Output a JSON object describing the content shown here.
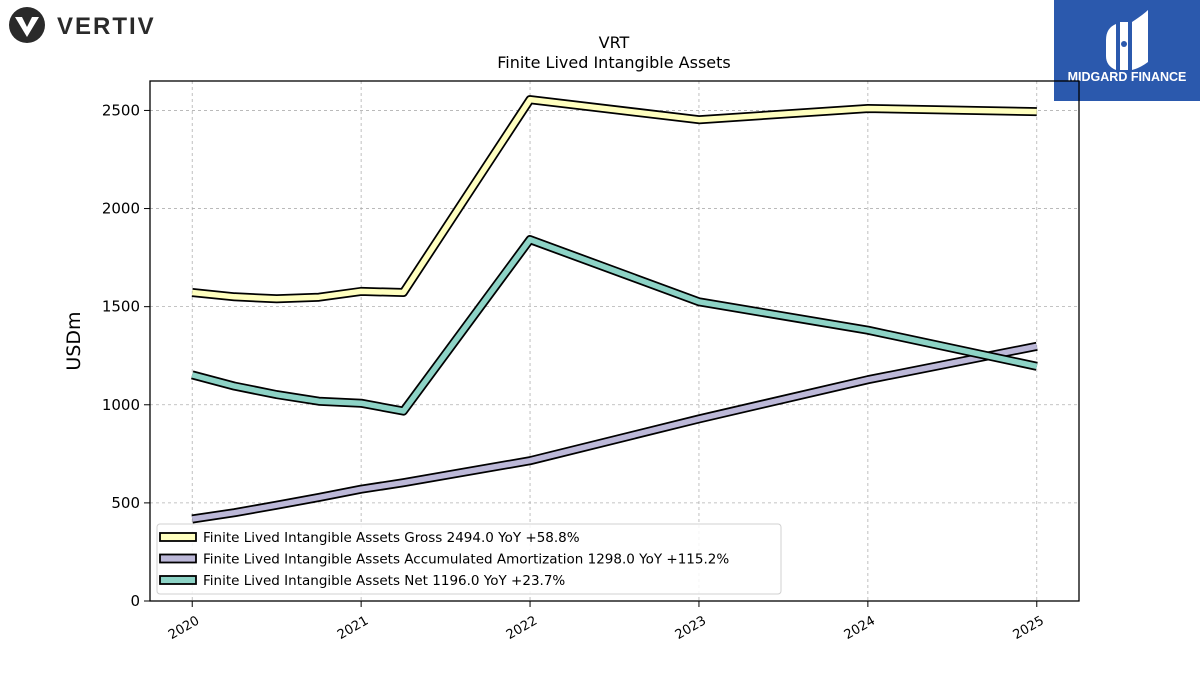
{
  "brand_left": {
    "name": "VERTIV",
    "icon": "vertiv-chevron-logo-icon"
  },
  "brand_right": {
    "name": "MIDGARD FINANCE",
    "icon": "midgard-m-logo-icon",
    "bg_color": "#2b59ad"
  },
  "chart_data": {
    "type": "line",
    "title": "VRT",
    "subtitle": "Finite Lived Intangible Assets",
    "ylabel": "USDm",
    "xlabel": "",
    "xlim": [
      2019.75,
      2025.25
    ],
    "ylim": [
      0,
      2650
    ],
    "yticks": [
      0,
      500,
      1000,
      1500,
      2000,
      2500
    ],
    "xticks": [
      "2020",
      "2021",
      "2022",
      "2023",
      "2024",
      "2025"
    ],
    "grid": true,
    "legend_position": "lower-left",
    "series": [
      {
        "name": "Finite Lived Intangible Assets Gross",
        "legend_label": "Finite Lived Intangible Assets Gross  2494.0 YoY +58.8%",
        "color": "#ffffbf",
        "x": [
          2020.0,
          2020.25,
          2020.5,
          2020.75,
          2021.0,
          2021.25,
          2022.0,
          2023.0,
          2024.0,
          2025.0
        ],
        "y": [
          1572,
          1550,
          1540,
          1548,
          1578,
          1572,
          2555,
          2453,
          2510,
          2494
        ]
      },
      {
        "name": "Finite Lived Intangible Assets Accumulated Amortization",
        "legend_label": "Finite Lived Intangible Assets Accumulated Amortization  1298.0 YoY +115.2%",
        "color": "#bcb8d8",
        "x": [
          2020.0,
          2020.25,
          2020.5,
          2020.75,
          2021.0,
          2021.25,
          2022.0,
          2023.0,
          2024.0,
          2025.0
        ],
        "y": [
          418,
          450,
          488,
          528,
          570,
          603,
          715,
          928,
          1128,
          1298
        ]
      },
      {
        "name": "Finite Lived Intangible Assets Net",
        "legend_label": "Finite Lived Intangible Assets Net  1196.0 YoY +23.7%",
        "color": "#8dd3c6",
        "x": [
          2020.0,
          2020.25,
          2020.5,
          2020.75,
          2021.0,
          2021.25,
          2022.0,
          2023.0,
          2024.0,
          2025.0
        ],
        "y": [
          1152,
          1095,
          1052,
          1018,
          1008,
          968,
          1842,
          1525,
          1380,
          1196
        ]
      }
    ]
  }
}
